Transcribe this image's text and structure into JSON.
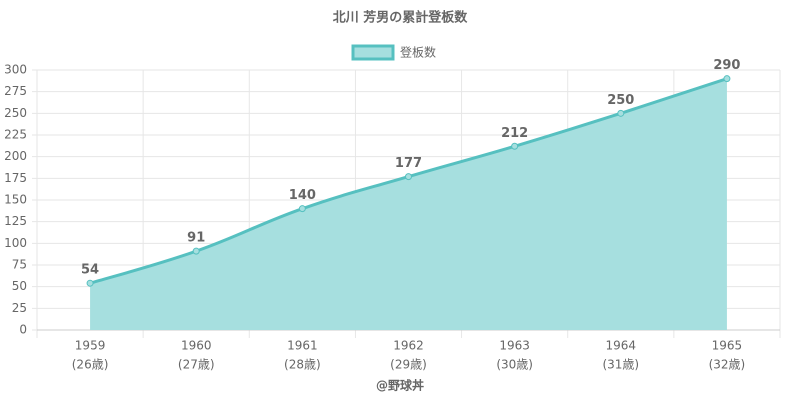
{
  "chart_data": {
    "type": "area",
    "title": "北川 芳男の累計登板数",
    "categories": [
      "1959",
      "1960",
      "1961",
      "1962",
      "1963",
      "1964",
      "1965"
    ],
    "category_sublabels": [
      "(26歳)",
      "(27歳)",
      "(28歳)",
      "(29歳)",
      "(30歳)",
      "(31歳)",
      "(32歳)"
    ],
    "series": [
      {
        "name": "登板数",
        "color": "#56c0c0",
        "fill_color": "#a6dfdf",
        "values": [
          54,
          91,
          140,
          177,
          212,
          250,
          290
        ]
      }
    ],
    "ylim": [
      0,
      300
    ],
    "yticks": [
      0,
      25,
      50,
      75,
      100,
      125,
      150,
      175,
      200,
      225,
      250,
      275,
      300
    ],
    "grid": true,
    "legend": "top",
    "source": "@野球丼"
  }
}
